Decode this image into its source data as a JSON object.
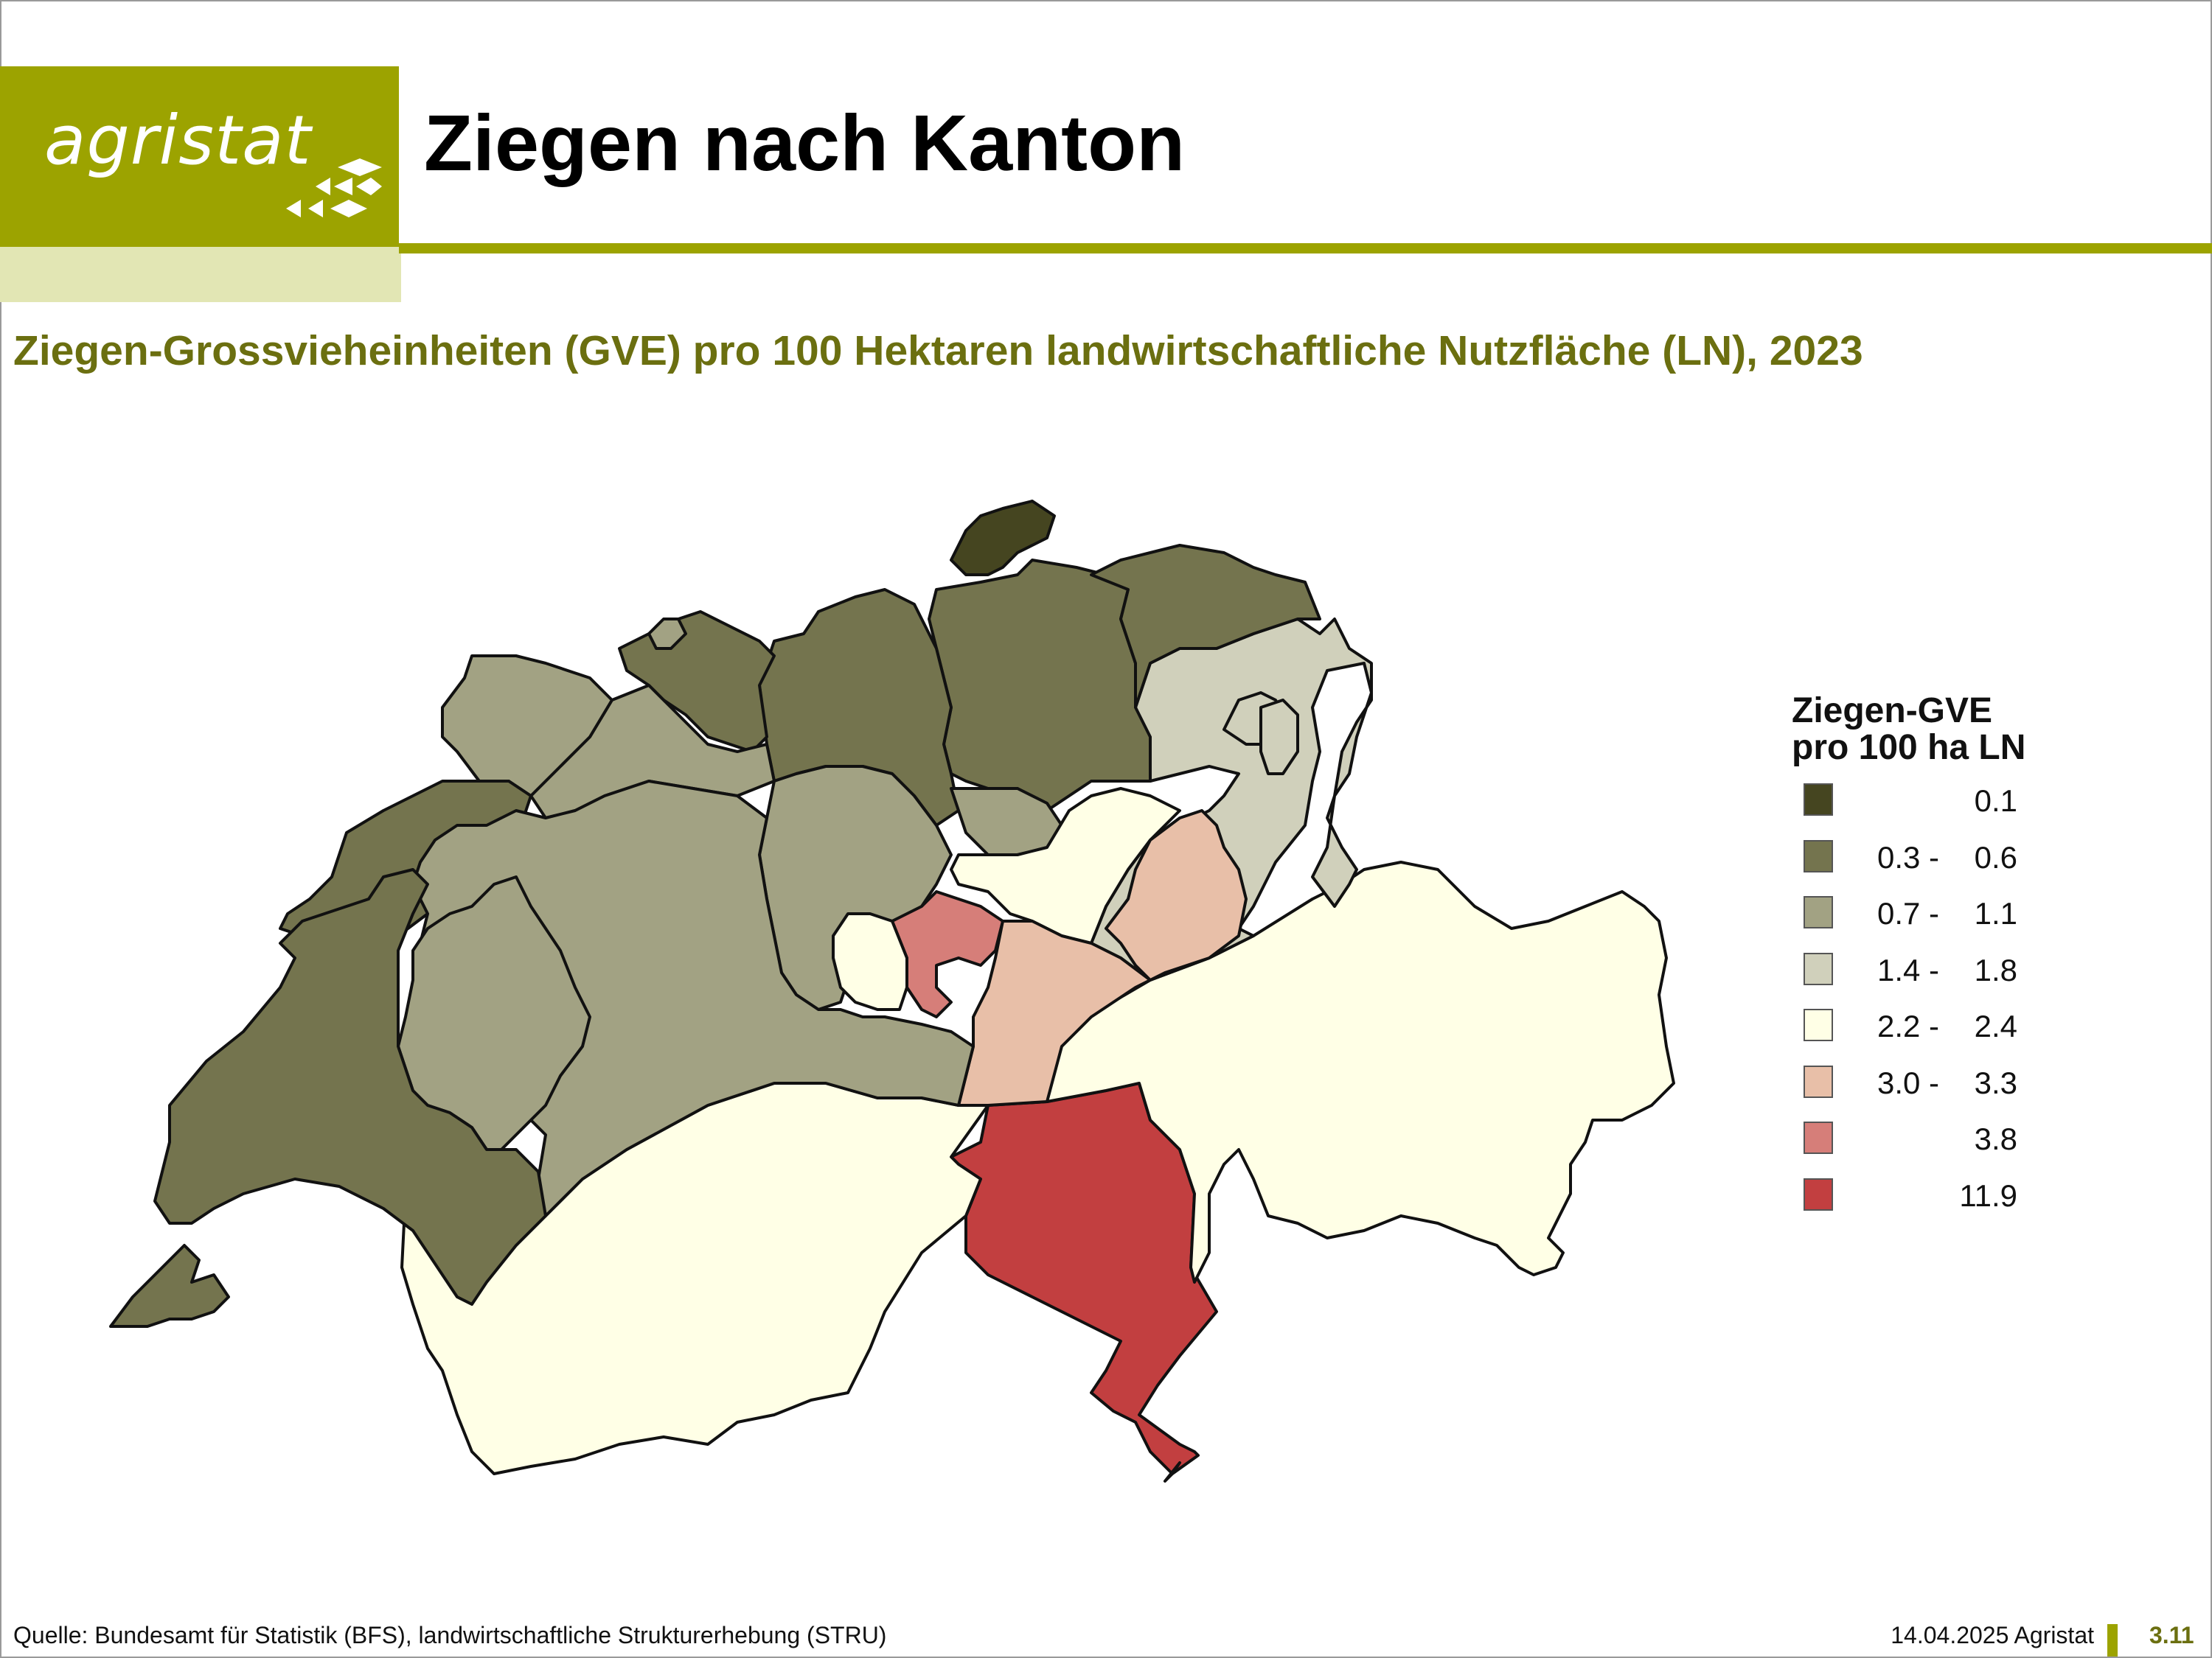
{
  "header": {
    "logo_text": "agristat",
    "title": "Ziegen nach Kanton"
  },
  "subtitle": "Ziegen-Grossvieheinheiten (GVE) pro 100 Hektaren landwirtschaftliche Nutzfläche (LN), 2023",
  "legend": {
    "title_line1": "Ziegen-GVE",
    "title_line2": "pro 100 ha LN",
    "classes": [
      {
        "low": "",
        "sep": "",
        "high": "0.1",
        "color": "#454520"
      },
      {
        "low": "0.3 -",
        "high": "0.6",
        "color": "#74744e"
      },
      {
        "low": "0.7 -",
        "high": "1.1",
        "color": "#a2a283"
      },
      {
        "low": "1.4 -",
        "high": "1.8",
        "color": "#d0d0bb"
      },
      {
        "low": "2.2 -",
        "high": "2.4",
        "color": "#ffffe6"
      },
      {
        "low": "3.0 -",
        "high": "3.3",
        "color": "#e8bfa8"
      },
      {
        "low": "",
        "high": "3.8",
        "color": "#d67e79"
      },
      {
        "low": "",
        "high": "11.9",
        "color": "#c23f40"
      }
    ]
  },
  "footer": {
    "source": "Quelle: Bundesamt für Statistik (BFS), landwirtschaftliche Strukturerhebung (STRU)",
    "date": "14.04.2025 Agristat",
    "page": "3.11"
  },
  "colors": {
    "brand_olive": "#9ca300",
    "brand_light": "#e2e6b4",
    "subtitle": "#6b6f10"
  }
}
